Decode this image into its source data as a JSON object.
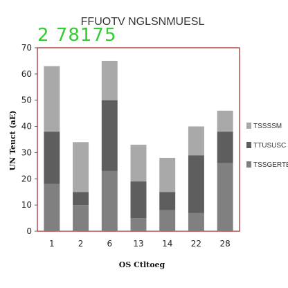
{
  "overlay": {
    "text": "2 78175",
    "color": "#33cc33"
  },
  "chart_data": {
    "type": "bar",
    "stacked": true,
    "title": "FFUOTV NGLSNMUESL",
    "xlabel": "OS Ctltoeg",
    "ylabel": "UN Teuct (aE)",
    "categories": [
      "1",
      "2",
      "6",
      "13",
      "14",
      "22",
      "28"
    ],
    "ylim": [
      0,
      70
    ],
    "yticks": [
      0,
      10,
      20,
      30,
      40,
      50,
      60,
      70
    ],
    "grid": false,
    "legend_position": "right",
    "series": [
      {
        "name": "TSSGERTE",
        "color": "#808080",
        "values": [
          18,
          10,
          23,
          5,
          8,
          7,
          26
        ]
      },
      {
        "name": "TTUSUSC",
        "color": "#5e5e5e",
        "values": [
          20,
          5,
          27,
          14,
          7,
          22,
          12
        ]
      },
      {
        "name": "TSSSSM",
        "color": "#a9a9a9",
        "values": [
          25,
          19,
          15,
          14,
          13,
          11,
          8
        ]
      }
    ],
    "colors": {
      "plot_border": "#a02020",
      "axis": "#555555"
    }
  }
}
